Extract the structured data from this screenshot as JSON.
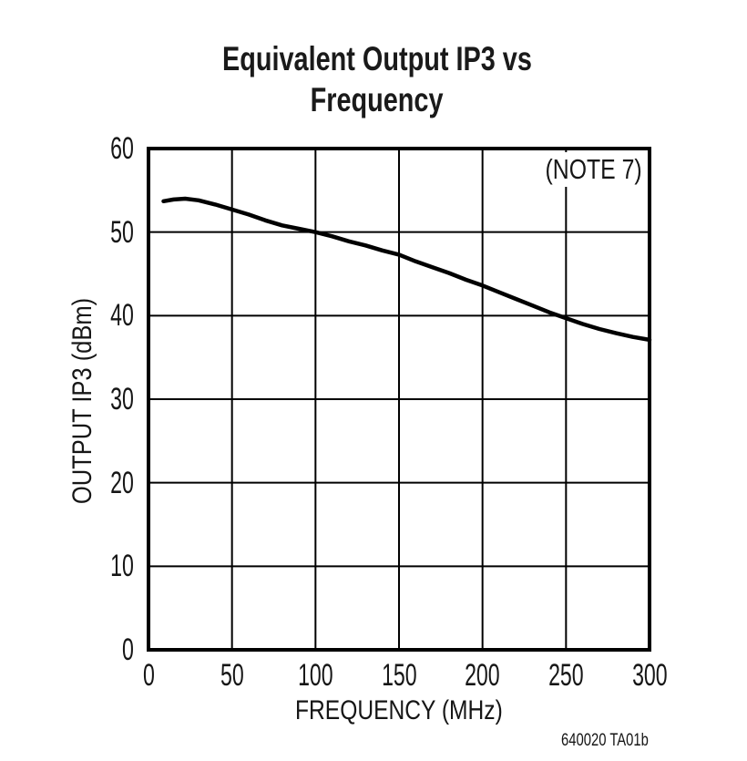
{
  "page": {
    "title_line1": "Equivalent Output IP3 vs",
    "title_line2": "Frequency",
    "note": "(NOTE 7)",
    "footer": "640020 TA01b"
  },
  "colors": {
    "line": "#000000",
    "grid": "#000000",
    "text": "#161616",
    "background": "#ffffff"
  },
  "chart_data": {
    "type": "line",
    "title": "Equivalent Output IP3 vs Frequency",
    "xlabel": "FREQUENCY (MHz)",
    "ylabel": "OUTPUT IP3 (dBm)",
    "xlim": [
      0,
      300
    ],
    "ylim": [
      0,
      60
    ],
    "x_ticks": [
      0,
      50,
      100,
      150,
      200,
      250,
      300
    ],
    "y_ticks": [
      0,
      10,
      20,
      30,
      40,
      50,
      60
    ],
    "grid": true,
    "legend": "none",
    "annotation": "(NOTE 7)",
    "series": [
      {
        "name": "Equivalent Output IP3",
        "color": "#000000",
        "x": [
          9,
          15,
          22,
          30,
          40,
          50,
          60,
          70,
          80,
          90,
          100,
          110,
          120,
          130,
          140,
          150,
          160,
          170,
          180,
          190,
          200,
          210,
          220,
          230,
          240,
          250,
          260,
          270,
          280,
          290,
          300
        ],
        "y": [
          53.7,
          53.9,
          54.0,
          53.8,
          53.3,
          52.7,
          52.1,
          51.4,
          50.8,
          50.4,
          50.0,
          49.5,
          48.9,
          48.4,
          47.8,
          47.3,
          46.5,
          45.8,
          45.1,
          44.3,
          43.6,
          42.8,
          42.0,
          41.2,
          40.4,
          39.7,
          39.0,
          38.4,
          37.9,
          37.45,
          37.1
        ]
      }
    ]
  }
}
